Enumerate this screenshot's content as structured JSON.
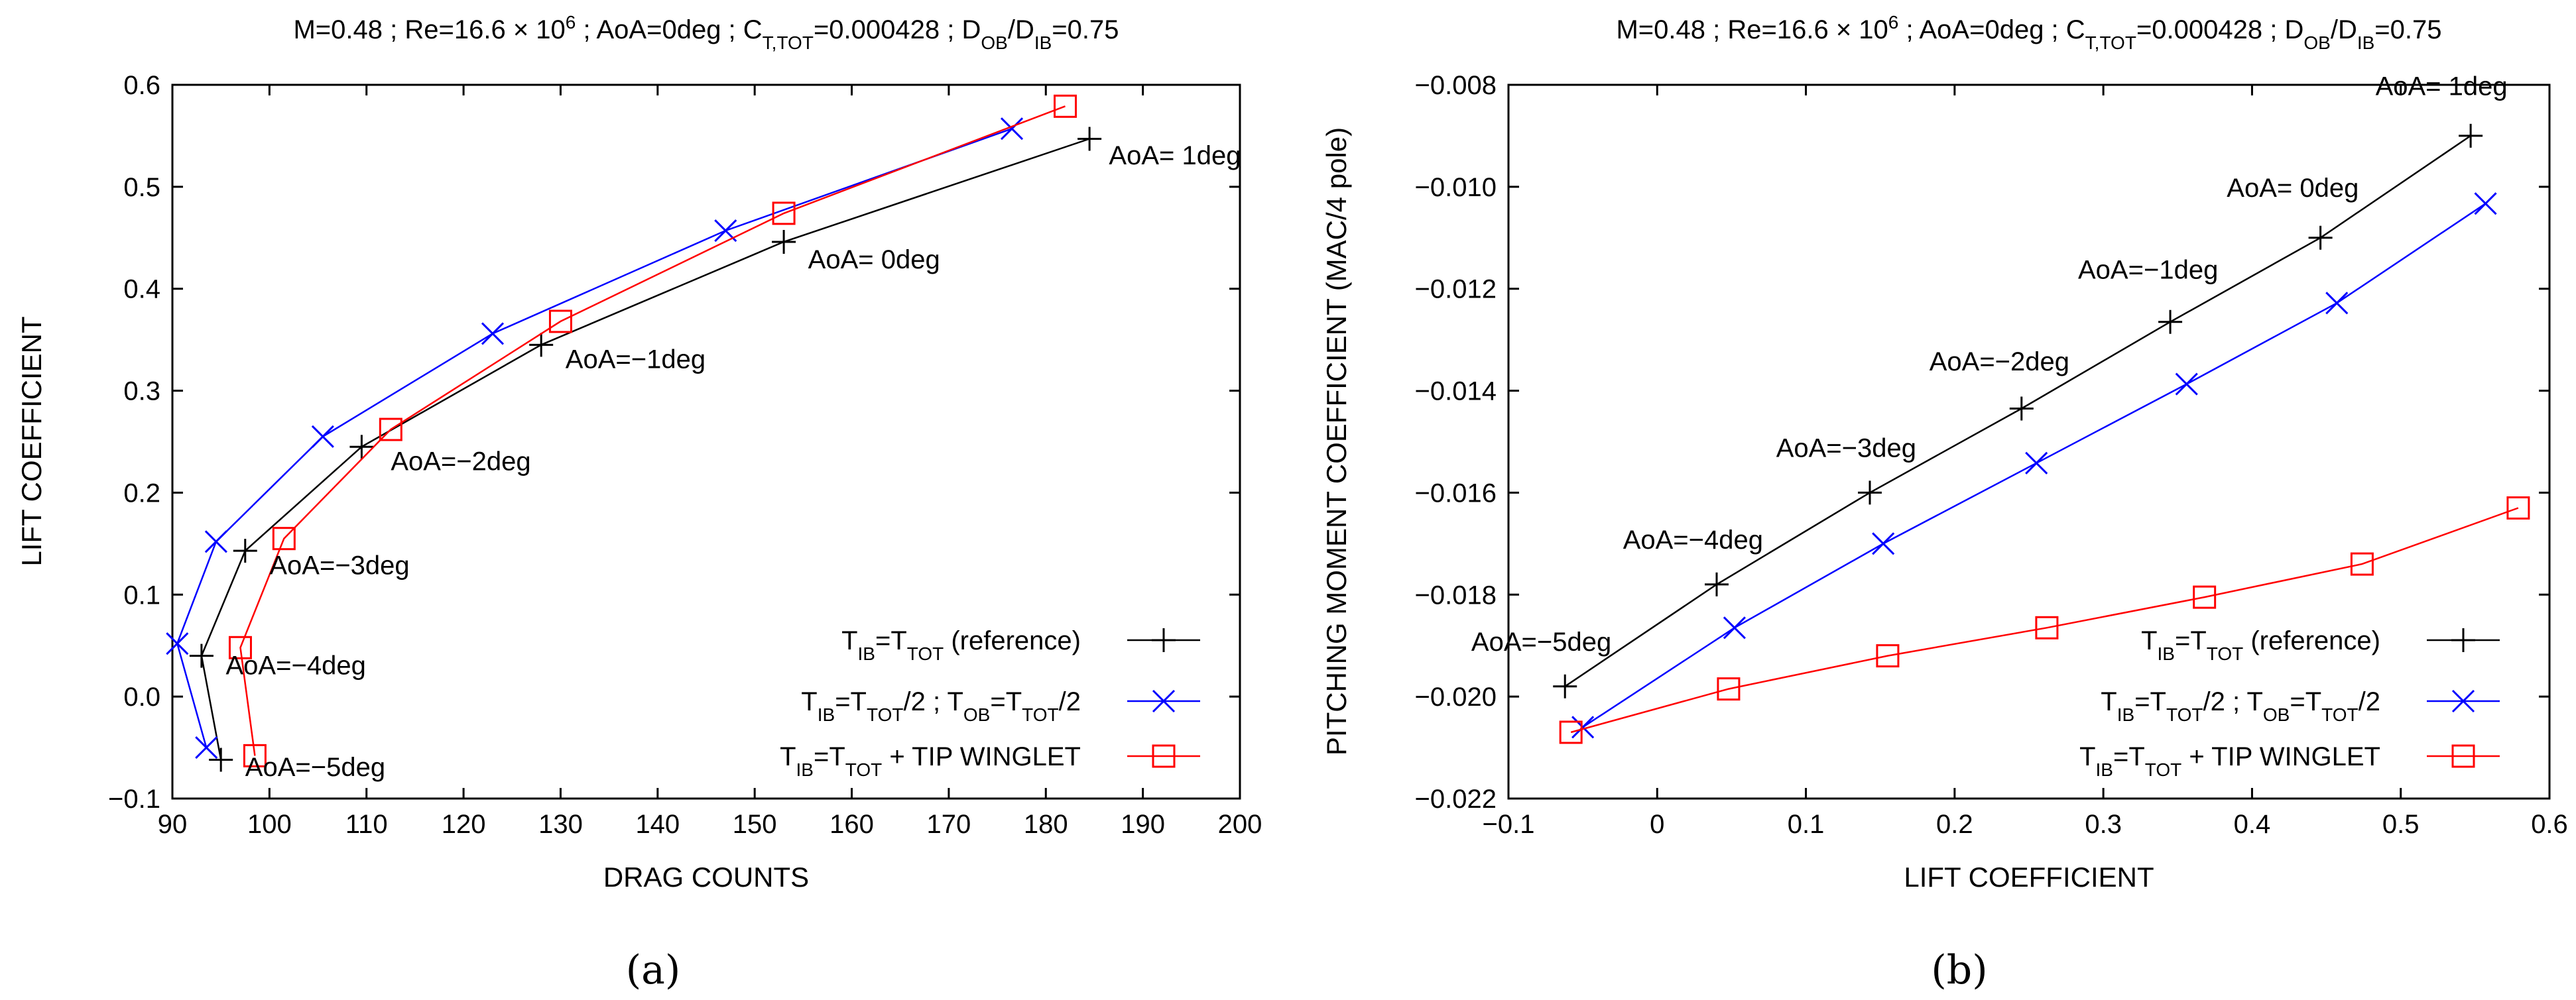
{
  "chart_data": [
    {
      "type": "line",
      "panel": "a",
      "caption": "(a)",
      "title": "M=0.48 ; Re=16.6 × 10⁶ ; AoA=0deg ; C_T,TOT=0.000428 ; D_OB/D_IB=0.75",
      "xlabel": "DRAG COUNTS",
      "ylabel": "LIFT COEFFICIENT",
      "xlim": [
        90,
        200
      ],
      "ylim": [
        -0.1,
        0.6
      ],
      "xticks": [
        90,
        100,
        110,
        120,
        130,
        140,
        150,
        160,
        170,
        180,
        190,
        200
      ],
      "yticks": [
        -0.1,
        0.0,
        0.1,
        0.2,
        0.3,
        0.4,
        0.5,
        0.6
      ],
      "ytick_labels": [
        "−0.1",
        "0.0",
        "0.1",
        "0.2",
        "0.3",
        "0.4",
        "0.5",
        "0.6"
      ],
      "legend_position": "bottom-right",
      "series": [
        {
          "name": "T_IB=T_TOT   (reference)",
          "color": "#000000",
          "marker": "plus",
          "x": [
            95,
            93,
            97.5,
            109.5,
            128,
            153,
            184.5
          ],
          "y": [
            -0.062,
            0.04,
            0.143,
            0.245,
            0.345,
            0.446,
            0.547
          ]
        },
        {
          "name": "T_IB=T_TOT/2 ; T_OB=T_TOT/2",
          "color": "#0000ff",
          "marker": "x",
          "x": [
            93.5,
            90.5,
            94.5,
            105.5,
            123,
            147,
            176.5
          ],
          "y": [
            -0.05,
            0.052,
            0.152,
            0.255,
            0.356,
            0.457,
            0.557
          ]
        },
        {
          "name": "T_IB=T_TOT +  TIP WINGLET",
          "color": "#ff0000",
          "marker": "square",
          "x": [
            98.5,
            97,
            101.5,
            112.5,
            130,
            153,
            182
          ],
          "y": [
            -0.058,
            0.048,
            0.155,
            0.262,
            0.368,
            0.474,
            0.579
          ]
        }
      ],
      "annotations": [
        {
          "text": "AoA=−5deg",
          "x": 97.5,
          "y": -0.078
        },
        {
          "text": "AoA=−4deg",
          "x": 95.5,
          "y": 0.022
        },
        {
          "text": "AoA=−3deg",
          "x": 100,
          "y": 0.12
        },
        {
          "text": "AoA=−2deg",
          "x": 112.5,
          "y": 0.222
        },
        {
          "text": "AoA=−1deg",
          "x": 130.5,
          "y": 0.322
        },
        {
          "text": "AoA= 0deg",
          "x": 155.5,
          "y": 0.42
        },
        {
          "text": "AoA= 1deg",
          "x": 186.5,
          "y": 0.522
        }
      ]
    },
    {
      "type": "line",
      "panel": "b",
      "caption": "(b)",
      "title": "M=0.48 ; Re=16.6 × 10⁶ ; AoA=0deg ; C_T,TOT=0.000428 ; D_OB/D_IB=0.75",
      "xlabel": "LIFT COEFFICIENT",
      "ylabel": "PITCHING MOMENT COEFFICIENT   (MAC/4 pole)",
      "xlim": [
        -0.1,
        0.6
      ],
      "ylim": [
        -0.022,
        -0.008
      ],
      "xticks": [
        -0.1,
        0,
        0.1,
        0.2,
        0.3,
        0.4,
        0.5,
        0.6
      ],
      "xtick_labels": [
        "−0.1",
        "0",
        "0.1",
        "0.2",
        "0.3",
        "0.4",
        "0.5",
        "0.6"
      ],
      "yticks": [
        -0.022,
        -0.02,
        -0.018,
        -0.016,
        -0.014,
        -0.012,
        -0.01,
        -0.008
      ],
      "ytick_labels": [
        "−0.022",
        "−0.020",
        "−0.018",
        "−0.016",
        "−0.014",
        "−0.012",
        "−0.010",
        "−0.008"
      ],
      "legend_position": "bottom-right",
      "series": [
        {
          "name": "T_IB=T_TOT   (reference)",
          "color": "#000000",
          "marker": "plus",
          "x": [
            -0.062,
            0.04,
            0.143,
            0.245,
            0.345,
            0.446,
            0.547
          ],
          "y": [
            -0.0198,
            -0.0178,
            -0.016,
            -0.01435,
            -0.01265,
            -0.011,
            -0.009
          ]
        },
        {
          "name": "T_IB=T_TOT/2 ; T_OB=T_TOT/2",
          "color": "#0000ff",
          "marker": "x",
          "x": [
            -0.05,
            0.052,
            0.152,
            0.255,
            0.356,
            0.457,
            0.557
          ],
          "y": [
            -0.0206,
            -0.01865,
            -0.017,
            -0.01542,
            -0.01387,
            -0.01228,
            -0.01033
          ]
        },
        {
          "name": "T_IB=T_TOT +  TIP WINGLET",
          "color": "#ff0000",
          "marker": "square",
          "x": [
            -0.058,
            0.048,
            0.155,
            0.262,
            0.368,
            0.474,
            0.579
          ],
          "y": [
            -0.0207,
            -0.01985,
            -0.0192,
            -0.01865,
            -0.01805,
            -0.0174,
            -0.0163
          ]
        }
      ],
      "annotations": [
        {
          "text": "AoA=−5deg",
          "x": -0.125,
          "y": -0.0191
        },
        {
          "text": "AoA=−4deg",
          "x": -0.023,
          "y": -0.0171
        },
        {
          "text": "AoA=−3deg",
          "x": 0.08,
          "y": -0.0153
        },
        {
          "text": "AoA=−2deg",
          "x": 0.183,
          "y": -0.0136
        },
        {
          "text": "AoA=−1deg",
          "x": 0.283,
          "y": -0.0118
        },
        {
          "text": "AoA= 0deg",
          "x": 0.383,
          "y": -0.0102
        },
        {
          "text": "AoA= 1deg",
          "x": 0.483,
          "y": -0.0082
        }
      ]
    }
  ]
}
